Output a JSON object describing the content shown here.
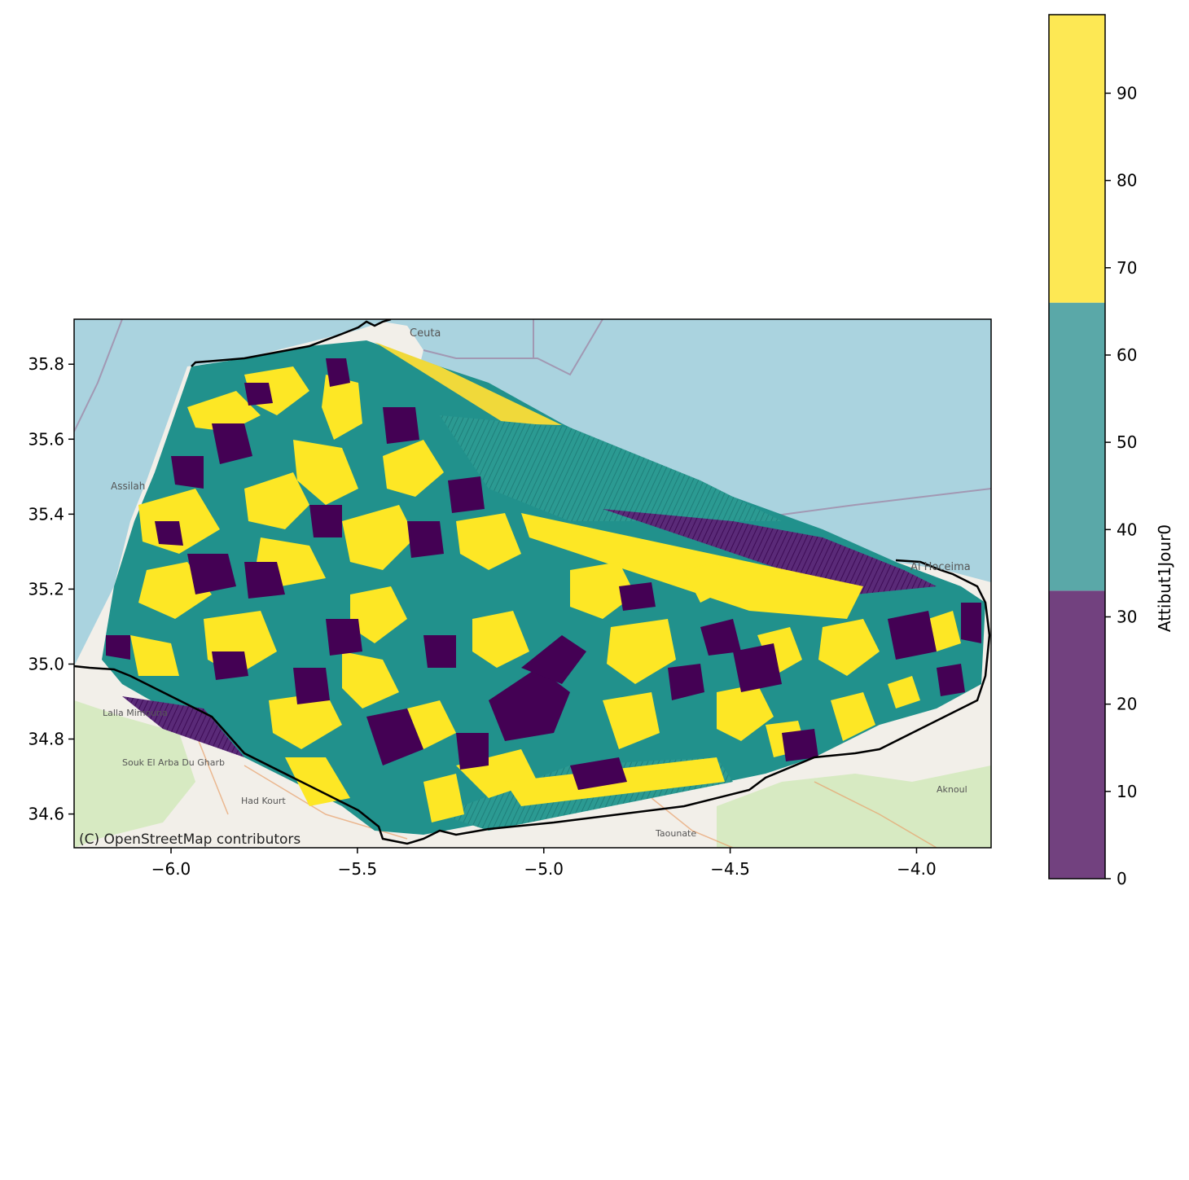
{
  "chart_data": {
    "type": "filled-contour-map",
    "x_ticks": [
      "−6.0",
      "−5.5",
      "−5.0",
      "−4.5",
      "−4.0"
    ],
    "x_tick_values": [
      -6.0,
      -5.5,
      -5.0,
      -4.5,
      -4.0
    ],
    "y_ticks": [
      "35.8",
      "35.6",
      "35.4",
      "35.2",
      "35.0",
      "34.8",
      "34.6"
    ],
    "y_tick_values": [
      35.8,
      35.6,
      35.4,
      35.2,
      35.0,
      34.8,
      34.6
    ],
    "xlim": [
      -6.26,
      -3.8
    ],
    "ylim": [
      34.51,
      35.92
    ],
    "colorbar": {
      "label": "Attibut1Jour0",
      "ticks": [
        "0",
        "10",
        "20",
        "30",
        "40",
        "50",
        "60",
        "70",
        "80",
        "90"
      ],
      "tick_values": [
        0,
        10,
        20,
        30,
        40,
        50,
        60,
        70,
        80,
        90
      ],
      "range": [
        0,
        99
      ],
      "levels": [
        {
          "from": 0,
          "to": 33,
          "color": "#72417f"
        },
        {
          "from": 33,
          "to": 66,
          "color": "#5aa8a8"
        },
        {
          "from": 66,
          "to": 99,
          "color": "#fde854"
        }
      ]
    },
    "colors": {
      "sea": "#aad3df",
      "land": "#f2efe9",
      "low": "#440154",
      "mid": "#21918c",
      "high": "#fde725"
    },
    "places": [
      "Ceuta",
      "Assilah",
      "Lalla Mimouna",
      "Souk El Arba Du Gharb",
      "Had Kourt",
      "Taounate",
      "Al Hoceima",
      "Aknoul"
    ],
    "attribution": "(C) OpenStreetMap contributors"
  }
}
